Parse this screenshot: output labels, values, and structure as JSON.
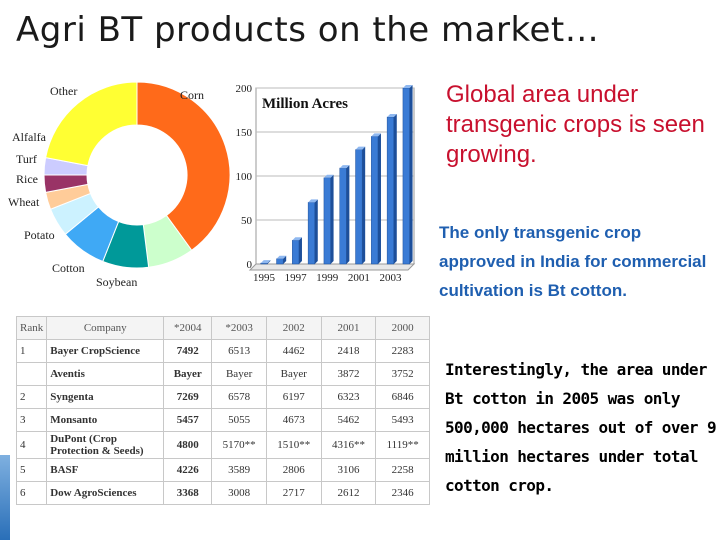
{
  "title": "Agri BT products on the market…",
  "chart_data": [
    {
      "type": "pie",
      "labels": [
        "Corn",
        "Soybean",
        "Cotton",
        "Potato",
        "Wheat",
        "Rice",
        "Turf",
        "Alfalfa",
        "Other"
      ],
      "values": [
        40,
        8,
        8,
        8,
        5,
        3,
        3,
        3,
        22
      ],
      "colors": [
        "#ff6a1a",
        "#ccffcc",
        "#009999",
        "#3fa9f5",
        "#ccf2ff",
        "#ffcc99",
        "#993366",
        "#ccccff",
        "#ffff33"
      ]
    },
    {
      "type": "bar",
      "title": "Million Acres",
      "categories": [
        "1995",
        "1996",
        "1997",
        "1998",
        "1999",
        "2000",
        "2001",
        "2002",
        "2003",
        "2004"
      ],
      "x_tick_labels": [
        "1995",
        "1997",
        "1999",
        "2001",
        "2003"
      ],
      "values": [
        1,
        6,
        27,
        70,
        98,
        109,
        130,
        145,
        167,
        200
      ],
      "y_ticks": [
        "0",
        "50",
        "100",
        "150",
        "200"
      ],
      "ylim": [
        0,
        200
      ],
      "bar_color": "#3a7bd5"
    }
  ],
  "table": {
    "headers": [
      "Rank",
      "Company",
      "*2004",
      "*2003",
      "2002",
      "2001",
      "2000"
    ],
    "rows": [
      {
        "rank": "1",
        "company": "Bayer CropScience",
        "values": [
          "7492",
          "6513",
          "4462",
          "2418",
          "2283"
        ]
      },
      {
        "rank": "",
        "company": "Aventis",
        "values": [
          "Bayer",
          "Bayer",
          "Bayer",
          "3872",
          "3752"
        ]
      },
      {
        "rank": "2",
        "company": "Syngenta",
        "values": [
          "7269",
          "6578",
          "6197",
          "6323",
          "6846"
        ]
      },
      {
        "rank": "3",
        "company": "Monsanto",
        "values": [
          "5457",
          "5055",
          "4673",
          "5462",
          "5493"
        ]
      },
      {
        "rank": "4",
        "company": "DuPont (Crop Protection & Seeds)",
        "values": [
          "4800",
          "5170**",
          "1510**",
          "4316**",
          "1119**"
        ]
      },
      {
        "rank": "5",
        "company": "BASF",
        "values": [
          "4226",
          "3589",
          "2806",
          "3106",
          "2258"
        ]
      },
      {
        "rank": "6",
        "company": "Dow AgroSciences",
        "values": [
          "3368",
          "3008",
          "2717",
          "2612",
          "2346"
        ]
      }
    ]
  },
  "text": {
    "red": "Global area under transgenic crops is seen growing.",
    "blue": "The only transgenic crop approved in India for commercial cultivation is Bt cotton.",
    "black": "Interestingly, the area under Bt cotton in 2005 was only 500,000 hectares out of over 9 million hectares under total cotton crop."
  }
}
